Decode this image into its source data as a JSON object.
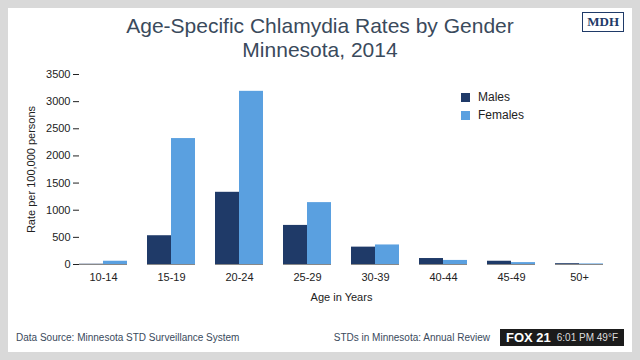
{
  "chart_data": {
    "type": "bar",
    "title": "Age-Specific Chlamydia Rates by Gender",
    "subtitle": "Minnesota, 2014",
    "x_label": "Age in Years",
    "y_label": "Rate per 100,000 persons",
    "categories": [
      "10-14",
      "15-19",
      "20-24",
      "25-29",
      "30-39",
      "40-44",
      "45-49",
      "50+"
    ],
    "series": [
      {
        "name": "Males",
        "color": "#1f3a68",
        "values": [
          5,
          530,
          1330,
          720,
          320,
          110,
          60,
          15
        ]
      },
      {
        "name": "Females",
        "color": "#5aa0e0",
        "values": [
          60,
          2320,
          3190,
          1140,
          360,
          75,
          35,
          10
        ]
      }
    ],
    "ylim": [
      0,
      3500
    ],
    "yticks": [
      0,
      500,
      1000,
      1500,
      2000,
      2500,
      3000,
      3500
    ],
    "grid": false,
    "legend": "top-right",
    "annotations": [
      "Data Source: Minnesota STD Surveillance System",
      "STDs in Minnesota: Annual Review",
      "MDH",
      "FOX 21",
      "6:01 PM 49°F"
    ]
  }
}
